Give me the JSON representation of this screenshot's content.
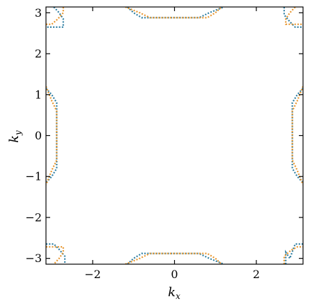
{
  "chart_data": {
    "type": "scatter",
    "xlabel": "k",
    "xlabel_sub": "x",
    "ylabel": "k",
    "ylabel_sub": "y",
    "xlim": [
      -3.14159,
      3.14159
    ],
    "ylim": [
      -3.14159,
      3.14159
    ],
    "xticks": [
      -2,
      0,
      2
    ],
    "yticks": [
      -3,
      -2,
      -1,
      0,
      1,
      2,
      3
    ],
    "xtick_labels": [
      "−2",
      "0",
      "2"
    ],
    "ytick_labels": [
      "−3",
      "−2",
      "−1",
      "0",
      "1",
      "2",
      "3"
    ],
    "grid": false,
    "marker": "dotted",
    "series": [
      {
        "color": "#2f7fa3",
        "paths": [
          [
            [
              -1.15,
              3.14
            ],
            [
              -1.0,
              3.0
            ],
            [
              -0.8,
              2.88
            ],
            [
              0.6,
              2.88
            ],
            [
              0.85,
              3.0
            ],
            [
              1.2,
              3.14
            ]
          ],
          [
            [
              -1.15,
              -3.14
            ],
            [
              -1.0,
              -3.0
            ],
            [
              -0.8,
              -2.88
            ],
            [
              0.6,
              -2.88
            ],
            [
              0.85,
              -3.0
            ],
            [
              1.2,
              -3.14
            ]
          ],
          [
            [
              -3.14,
              1.15
            ],
            [
              -3.0,
              1.0
            ],
            [
              -2.88,
              0.8
            ],
            [
              -2.88,
              -0.8
            ],
            [
              -3.0,
              -1.0
            ],
            [
              -3.14,
              -1.15
            ]
          ],
          [
            [
              3.14,
              1.15
            ],
            [
              3.0,
              1.0
            ],
            [
              2.88,
              0.8
            ],
            [
              2.88,
              -0.8
            ],
            [
              3.0,
              -1.0
            ],
            [
              3.14,
              -1.15
            ]
          ],
          [
            [
              -2.95,
              3.14
            ],
            [
              -2.82,
              3.0
            ],
            [
              -2.72,
              2.85
            ],
            [
              -2.72,
              2.65
            ],
            [
              -3.14,
              2.65
            ]
          ],
          [
            [
              2.68,
              3.14
            ],
            [
              2.68,
              2.95
            ],
            [
              2.82,
              2.78
            ],
            [
              2.95,
              2.65
            ],
            [
              3.14,
              2.65
            ]
          ],
          [
            [
              -3.14,
              -2.65
            ],
            [
              -2.95,
              -2.65
            ],
            [
              -2.82,
              -2.78
            ],
            [
              -2.68,
              -2.95
            ],
            [
              -2.68,
              -3.14
            ]
          ],
          [
            [
              2.72,
              -3.14
            ],
            [
              2.72,
              -2.85
            ],
            [
              2.82,
              -3.0
            ],
            [
              2.95,
              -2.65
            ],
            [
              3.14,
              -2.65
            ]
          ]
        ]
      },
      {
        "color": "#e8962e",
        "paths": [
          [
            [
              -1.2,
              3.14
            ],
            [
              -0.85,
              3.0
            ],
            [
              -0.6,
              2.88
            ],
            [
              0.8,
              2.88
            ],
            [
              1.0,
              3.0
            ],
            [
              1.15,
              3.14
            ]
          ],
          [
            [
              -1.2,
              -3.14
            ],
            [
              -0.85,
              -3.0
            ],
            [
              -0.6,
              -2.88
            ],
            [
              0.8,
              -2.88
            ],
            [
              1.0,
              -3.0
            ],
            [
              1.15,
              -3.14
            ]
          ],
          [
            [
              -3.14,
              1.2
            ],
            [
              -3.0,
              0.85
            ],
            [
              -2.88,
              0.6
            ],
            [
              -2.88,
              -0.6
            ],
            [
              -3.0,
              -0.85
            ],
            [
              -3.14,
              -1.2
            ]
          ],
          [
            [
              3.14,
              1.2
            ],
            [
              3.0,
              0.85
            ],
            [
              2.88,
              0.6
            ],
            [
              2.88,
              -0.6
            ],
            [
              3.0,
              -0.85
            ],
            [
              3.14,
              -1.2
            ]
          ],
          [
            [
              -2.72,
              3.14
            ],
            [
              -2.72,
              3.0
            ],
            [
              -2.85,
              2.85
            ],
            [
              -3.0,
              2.72
            ],
            [
              -3.14,
              2.72
            ]
          ],
          [
            [
              2.95,
              3.14
            ],
            [
              2.82,
              3.0
            ],
            [
              2.72,
              2.85
            ],
            [
              2.72,
              2.72
            ],
            [
              3.14,
              2.72
            ]
          ],
          [
            [
              -3.14,
              -2.72
            ],
            [
              -2.72,
              -2.72
            ],
            [
              -2.72,
              -2.85
            ],
            [
              -2.82,
              -3.0
            ],
            [
              -2.95,
              -3.14
            ]
          ],
          [
            [
              2.68,
              -3.14
            ],
            [
              2.68,
              -2.95
            ],
            [
              2.85,
              -2.8
            ],
            [
              3.0,
              -2.72
            ],
            [
              3.14,
              -2.72
            ]
          ]
        ]
      }
    ]
  }
}
